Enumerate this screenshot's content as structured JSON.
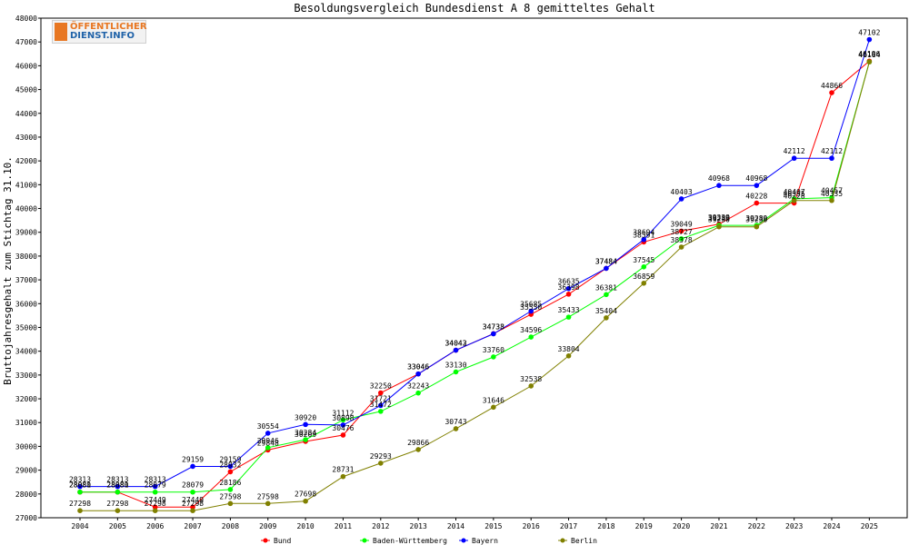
{
  "logo": {
    "line1": "ÖFFENTLICHER",
    "line2": "DIENST.INFO"
  },
  "chart_data": {
    "type": "line",
    "title": "Besoldungsvergleich Bundesdienst A 8 gemitteltes Gehalt",
    "xlabel": "",
    "ylabel": "Bruttojahresgehalt zum Stichtag 31.10.",
    "ylim": [
      27000,
      48000
    ],
    "yticks": [
      27000,
      28000,
      29000,
      30000,
      31000,
      32000,
      33000,
      34000,
      35000,
      36000,
      37000,
      38000,
      39000,
      40000,
      41000,
      42000,
      43000,
      44000,
      45000,
      46000,
      47000,
      48000
    ],
    "x": [
      "2004",
      "2005",
      "2006",
      "2007",
      "2008",
      "2009",
      "2010",
      "2011",
      "2012",
      "2013",
      "2014",
      "2015",
      "2016",
      "2017",
      "2018",
      "2019",
      "2020",
      "2021",
      "2022",
      "2023",
      "2024",
      "2025"
    ],
    "grid": false,
    "legend": "bottom",
    "series": [
      {
        "name": "Bund",
        "color": "#ff0000",
        "values": [
          28080,
          28080,
          27449,
          27449,
          28932,
          29848,
          30209,
          30476,
          32250,
          33046,
          34042,
          34738,
          35550,
          36398,
          37484,
          38591,
          39049,
          39339,
          40228,
          40228,
          44866,
          46196
        ]
      },
      {
        "name": "Baden-Württemberg",
        "color": "#00ff00",
        "values": [
          28081,
          28081,
          28079,
          28079,
          28186,
          29946,
          30284,
          31112,
          31472,
          32243,
          33130,
          33760,
          34596,
          35433,
          36381,
          37545,
          38727,
          39289,
          39289,
          40407,
          40457,
          46164
        ]
      },
      {
        "name": "Bayern",
        "color": "#0000ff",
        "values": [
          28313,
          28313,
          28313,
          29159,
          29159,
          30554,
          30920,
          30898,
          31721,
          33046,
          34043,
          34733,
          35685,
          36635,
          37484,
          38694,
          40403,
          40968,
          40968,
          42112,
          42112,
          47102
        ]
      },
      {
        "name": "Berlin",
        "color": "#808000",
        "values": [
          27298,
          27298,
          27298,
          27298,
          27598,
          27598,
          27698,
          28731,
          29293,
          29866,
          30743,
          31646,
          32538,
          33804,
          35404,
          36859,
          38378,
          39230,
          39230,
          40335,
          40335,
          46164
        ]
      }
    ]
  }
}
